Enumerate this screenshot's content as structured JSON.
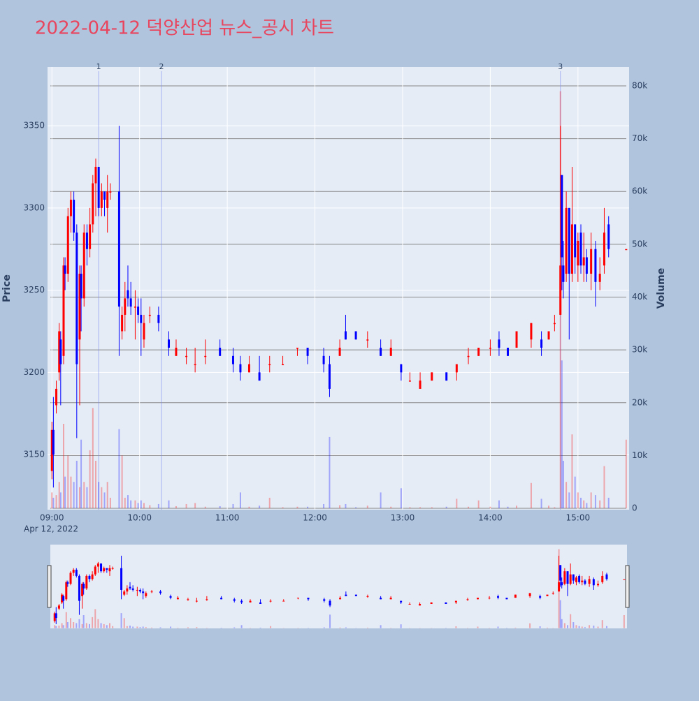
{
  "chart_data": {
    "type": "candlestick",
    "title": "2022-04-12 덕양산업 뉴스_공시 차트",
    "y_title": "Price",
    "y2_title": "Volume",
    "x_date_label": "Apr 12, 2022",
    "increasing_color": "#ff0000",
    "decreasing_color": "#0000ff",
    "title_color": "#e8455e",
    "grid": true,
    "x": [
      "09:00",
      "09:01",
      "09:03",
      "09:05",
      "09:06",
      "09:08",
      "09:09",
      "09:11",
      "09:13",
      "09:15",
      "09:17",
      "09:19",
      "09:20",
      "09:22",
      "09:24",
      "09:26",
      "09:28",
      "09:30",
      "09:32",
      "09:34",
      "09:36",
      "09:38",
      "09:40",
      "09:46",
      "09:48",
      "09:50",
      "09:52",
      "09:54",
      "09:57",
      "09:59",
      "10:01",
      "10:03",
      "10:07",
      "10:13",
      "10:20",
      "10:25",
      "10:32",
      "10:38",
      "10:45",
      "10:55",
      "11:04",
      "11:09",
      "11:15",
      "11:22",
      "11:29",
      "11:38",
      "11:48",
      "11:55",
      "12:06",
      "12:10",
      "12:17",
      "12:21",
      "12:28",
      "12:36",
      "12:45",
      "12:52",
      "12:59",
      "13:05",
      "13:12",
      "13:20",
      "13:30",
      "13:37",
      "13:45",
      "13:52",
      "14:00",
      "14:06",
      "14:12",
      "14:18",
      "14:28",
      "14:35",
      "14:40",
      "14:44",
      "14:48",
      "14:49",
      "14:50",
      "14:52",
      "14:54",
      "14:56",
      "14:58",
      "15:00",
      "15:02",
      "15:04",
      "15:06",
      "15:09",
      "15:12",
      "15:15",
      "15:18",
      "15:21",
      "15:33"
    ],
    "open": [
      3140,
      3165,
      3180,
      3200,
      3220,
      3210,
      3265,
      3260,
      3295,
      3305,
      3285,
      3220,
      3260,
      3245,
      3285,
      3275,
      3290,
      3315,
      3325,
      3300,
      3310,
      3300,
      3310,
      3310,
      3225,
      3235,
      3250,
      3245,
      3240,
      3240,
      3235,
      3220,
      3235,
      3235,
      3220,
      3210,
      3210,
      3205,
      3210,
      3215,
      3210,
      3205,
      3200,
      3200,
      3205,
      3205,
      3215,
      3215,
      3210,
      3205,
      3210,
      3225,
      3225,
      3220,
      3215,
      3210,
      3205,
      3195,
      3190,
      3195,
      3200,
      3200,
      3210,
      3210,
      3215,
      3220,
      3215,
      3215,
      3220,
      3220,
      3220,
      3230,
      3235,
      3320,
      3265,
      3260,
      3300,
      3260,
      3290,
      3265,
      3285,
      3265,
      3270,
      3260,
      3275,
      3255,
      3265,
      3290,
      3275
    ],
    "high": [
      3170,
      3185,
      3195,
      3230,
      3225,
      3270,
      3270,
      3300,
      3310,
      3310,
      3290,
      3265,
      3265,
      3290,
      3290,
      3300,
      3320,
      3330,
      3325,
      3315,
      3310,
      3320,
      3315,
      3350,
      3240,
      3255,
      3265,
      3255,
      3250,
      3245,
      3245,
      3235,
      3240,
      3240,
      3225,
      3220,
      3215,
      3215,
      3220,
      3220,
      3215,
      3210,
      3210,
      3210,
      3210,
      3210,
      3215,
      3215,
      3215,
      3210,
      3220,
      3235,
      3225,
      3225,
      3220,
      3220,
      3205,
      3200,
      3200,
      3200,
      3200,
      3205,
      3215,
      3215,
      3220,
      3225,
      3215,
      3225,
      3230,
      3225,
      3225,
      3235,
      3350,
      3320,
      3280,
      3310,
      3300,
      3325,
      3290,
      3285,
      3290,
      3285,
      3275,
      3285,
      3280,
      3270,
      3300,
      3295,
      3275
    ],
    "low": [
      3135,
      3130,
      3175,
      3195,
      3180,
      3205,
      3250,
      3255,
      3285,
      3280,
      3160,
      3180,
      3225,
      3240,
      3265,
      3270,
      3285,
      3295,
      3295,
      3295,
      3295,
      3285,
      3305,
      3210,
      3220,
      3225,
      3240,
      3235,
      3220,
      3230,
      3210,
      3215,
      3230,
      3225,
      3210,
      3210,
      3205,
      3200,
      3205,
      3210,
      3200,
      3195,
      3200,
      3195,
      3200,
      3205,
      3210,
      3205,
      3200,
      3185,
      3210,
      3220,
      3220,
      3215,
      3210,
      3210,
      3195,
      3195,
      3190,
      3195,
      3195,
      3195,
      3205,
      3210,
      3210,
      3210,
      3210,
      3215,
      3215,
      3210,
      3220,
      3225,
      3235,
      3250,
      3245,
      3255,
      3220,
      3255,
      3260,
      3255,
      3260,
      3255,
      3255,
      3250,
      3240,
      3250,
      3260,
      3270,
      3275
    ],
    "close": [
      3165,
      3150,
      3190,
      3225,
      3205,
      3265,
      3260,
      3295,
      3305,
      3285,
      3205,
      3260,
      3245,
      3285,
      3275,
      3290,
      3315,
      3325,
      3300,
      3310,
      3305,
      3310,
      3310,
      3240,
      3235,
      3245,
      3245,
      3240,
      3240,
      3235,
      3230,
      3230,
      3235,
      3230,
      3215,
      3215,
      3210,
      3205,
      3210,
      3210,
      3205,
      3200,
      3205,
      3195,
      3205,
      3205,
      3215,
      3210,
      3205,
      3190,
      3215,
      3220,
      3220,
      3220,
      3210,
      3215,
      3200,
      3195,
      3195,
      3200,
      3195,
      3205,
      3210,
      3215,
      3215,
      3215,
      3210,
      3225,
      3230,
      3215,
      3225,
      3230,
      3265,
      3270,
      3255,
      3300,
      3260,
      3290,
      3270,
      3280,
      3265,
      3270,
      3260,
      3275,
      3255,
      3260,
      3285,
      3275,
      3275
    ],
    "volume": [
      3000,
      2000,
      2500,
      5000,
      3000,
      16000,
      6000,
      10000,
      6000,
      5000,
      9000,
      4000,
      13000,
      5000,
      4000,
      11000,
      19000,
      9000,
      5000,
      4000,
      3000,
      5000,
      2000,
      15000,
      10000,
      2000,
      2500,
      1500,
      1500,
      1000,
      1500,
      1000,
      600,
      800,
      1500,
      400,
      800,
      1000,
      300,
      400,
      800,
      3000,
      300,
      500,
      2000,
      200,
      300,
      300,
      800,
      13500,
      600,
      800,
      200,
      500,
      3000,
      300,
      3800,
      200,
      200,
      200,
      300,
      1800,
      300,
      1500,
      300,
      1500,
      300,
      500,
      4800,
      1800,
      500,
      200,
      79000,
      28000,
      9000,
      5000,
      3000,
      14000,
      6000,
      3000,
      2000,
      1500,
      1000,
      3000,
      2500,
      1500,
      8000,
      2000,
      13000
    ],
    "xlim": [
      "08:57",
      "15:35"
    ],
    "xticks": [
      "09:00",
      "10:00",
      "11:00",
      "12:00",
      "13:00",
      "14:00",
      "15:00"
    ],
    "ylim": [
      3116.5,
      3385.7
    ],
    "yticks": [
      3150,
      3200,
      3250,
      3300,
      3350
    ],
    "y2lim": [
      -264,
      83570
    ],
    "y2ticks": [
      0,
      {
        "value": 10000,
        "label": "10k"
      },
      {
        "value": 20000,
        "label": "20k"
      },
      {
        "value": 30000,
        "label": "30k"
      },
      {
        "value": 40000,
        "label": "40k"
      },
      {
        "value": 50000,
        "label": "50k"
      },
      {
        "value": 60000,
        "label": "60k"
      },
      {
        "value": 70000,
        "label": "70k"
      },
      {
        "value": 80000,
        "label": "80k"
      }
    ],
    "annotations": [
      {
        "x": "09:32",
        "label": "1"
      },
      {
        "x": "10:15",
        "label": "2"
      },
      {
        "x": "14:48",
        "label": "3"
      }
    ]
  }
}
